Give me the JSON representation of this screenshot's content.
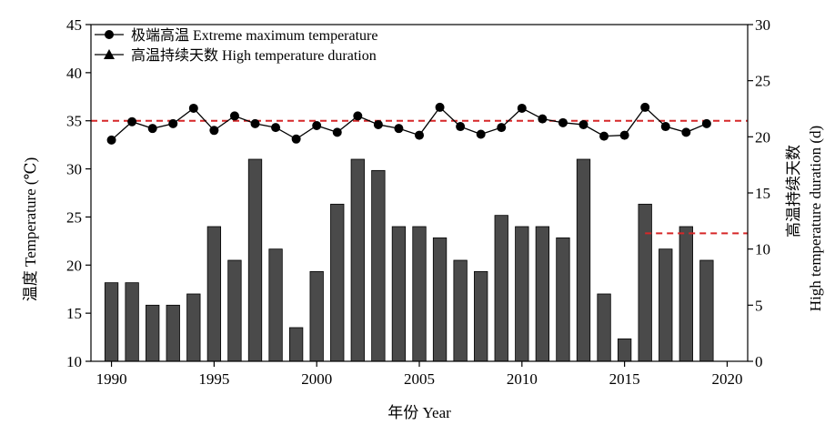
{
  "chart_data": {
    "type": "bar+line",
    "x_years": [
      1990,
      1991,
      1992,
      1993,
      1994,
      1995,
      1996,
      1997,
      1998,
      1999,
      2000,
      2001,
      2002,
      2003,
      2004,
      2005,
      2006,
      2007,
      2008,
      2009,
      2010,
      2011,
      2012,
      2013,
      2014,
      2015,
      2016,
      2017,
      2018,
      2019
    ],
    "x_ticks": [
      1990,
      1995,
      2000,
      2005,
      2010,
      2015,
      2020
    ],
    "xlim": [
      1989,
      2021
    ],
    "xlabel": "年份 Year",
    "y_left": {
      "label": "温度 Temperature (℃)",
      "lim": [
        10,
        45
      ],
      "ticks": [
        10,
        15,
        20,
        25,
        30,
        35,
        40,
        45
      ]
    },
    "y_right": {
      "label_cn": "高温持续天数",
      "label_en": "High temperature duration (d)",
      "lim": [
        0,
        30
      ],
      "ticks": [
        0,
        5,
        10,
        15,
        20,
        25,
        30
      ]
    },
    "series": [
      {
        "name": "高温持续天数 High temperature duration",
        "type": "bar",
        "axis": "right",
        "color": "#4a4a4a",
        "values": [
          7,
          7,
          5,
          5,
          6,
          12,
          9,
          18,
          10,
          3,
          8,
          14,
          18,
          17,
          12,
          12,
          11,
          9,
          8,
          13,
          12,
          12,
          11,
          18,
          6,
          2,
          14,
          10,
          12,
          9
        ]
      },
      {
        "name": "极端高温 Extreme maximum temperature",
        "type": "line",
        "axis": "left",
        "marker": "circle",
        "color": "#000000",
        "values": [
          33.0,
          34.9,
          34.2,
          34.7,
          36.3,
          34.0,
          35.5,
          34.7,
          34.3,
          33.1,
          34.5,
          33.8,
          35.5,
          34.6,
          34.2,
          33.5,
          36.4,
          34.4,
          33.6,
          34.3,
          36.3,
          35.2,
          34.8,
          34.6,
          33.4,
          33.5,
          36.4,
          34.4,
          33.8,
          34.7
        ]
      }
    ],
    "reference_lines": [
      {
        "axis": "left",
        "value": 35,
        "x_from": 1989,
        "x_to": 2021,
        "color": "#d62728",
        "style": "dashed"
      },
      {
        "axis": "right",
        "value": 11.4,
        "x_from": 2016,
        "x_to": 2021,
        "color": "#d62728",
        "style": "dashed"
      }
    ],
    "legend_position": "top-left",
    "grid": false
  }
}
